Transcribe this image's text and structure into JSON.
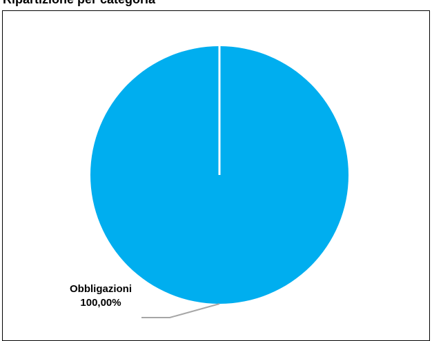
{
  "page": {
    "top_caption": "Ripartizione per categoria"
  },
  "chart_data": {
    "type": "pie",
    "categories": [
      "Obbligazioni"
    ],
    "values": [
      100.0
    ],
    "labels": [
      "Obbligazioni",
      "100,00%"
    ],
    "colors": [
      "#00AEEF"
    ],
    "legend": "none"
  }
}
